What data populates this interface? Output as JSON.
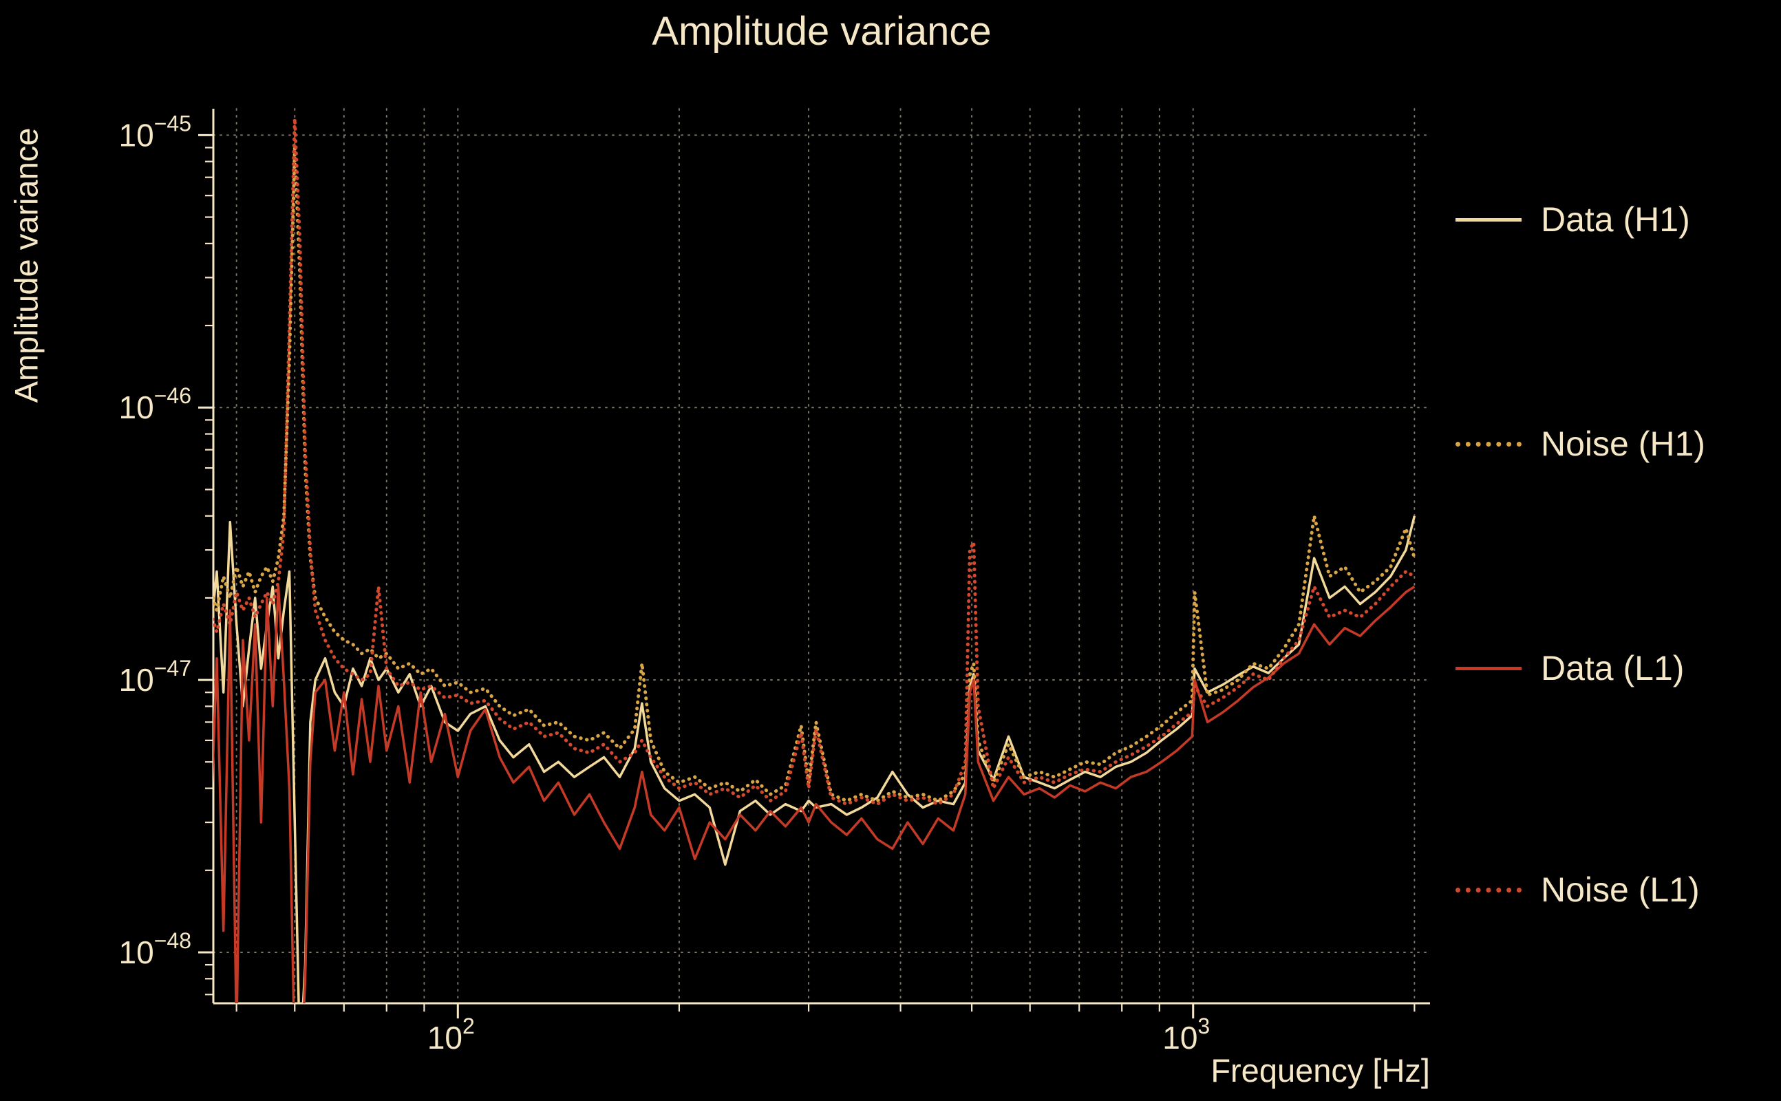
{
  "colors": {
    "background": "#000000",
    "text": "#f6e8c6",
    "grid": "#f6e8c6",
    "h1_data": "#f2d99b",
    "h1_noise": "#d8a546",
    "l1_data": "#c43a26",
    "l1_noise": "#d2492e"
  },
  "chart_data": {
    "type": "line",
    "title": "Amplitude variance",
    "xlabel": "Frequency [Hz]",
    "ylabel": "Amplitude variance",
    "xscale": "log",
    "yscale": "log",
    "xlim": [
      46.5,
      2100
    ],
    "ylim": [
      6.5e-49,
      1.25e-45
    ],
    "grid": "dotted",
    "legend_position": "right-outside",
    "x_tick_exponents": [
      2,
      3
    ],
    "y_tick_exponents": [
      -45,
      -46,
      -47,
      -48
    ],
    "x_gridlines": [
      50,
      60,
      70,
      80,
      90,
      100,
      200,
      300,
      400,
      500,
      600,
      700,
      800,
      900,
      1000,
      2000
    ],
    "values_scale": 1e-48,
    "x": [
      45,
      46,
      47,
      48,
      49,
      50,
      51,
      52,
      53,
      54,
      55,
      56,
      57,
      58,
      59,
      60,
      61,
      62,
      63,
      64,
      66,
      68,
      70,
      72,
      74,
      76,
      78,
      80,
      83,
      86,
      89,
      92,
      96,
      100,
      104,
      109,
      114,
      119,
      125,
      131,
      137,
      144,
      151,
      158,
      166,
      174,
      178,
      183,
      191,
      200,
      210,
      220,
      231,
      242,
      254,
      266,
      279,
      293,
      300,
      307,
      322,
      338,
      354,
      372,
      390,
      409,
      429,
      450,
      472,
      490,
      497,
      503,
      510,
      535,
      561,
      589,
      618,
      648,
      680,
      713,
      748,
      785,
      823,
      864,
      906,
      950,
      997,
      1005,
      1046,
      1097,
      1151,
      1207,
      1266,
      1328,
      1393,
      1461,
      1533,
      1608,
      1687,
      1769,
      1856,
      1947,
      2000
    ],
    "series": [
      {
        "name": "Data (H1)",
        "style": "solid",
        "color": "#f2d99b",
        "values": [
          22,
          14,
          25,
          9,
          38,
          16,
          8,
          13,
          20,
          11,
          16,
          22,
          12,
          18,
          25,
          3,
          0.4,
          0.9,
          7,
          10,
          12,
          9,
          8,
          11,
          9.5,
          12,
          10,
          11,
          9,
          10.5,
          8,
          9.5,
          7,
          6.5,
          7.5,
          8,
          6,
          5.2,
          5.8,
          4.6,
          5.0,
          4.4,
          4.8,
          5.2,
          4.4,
          5.6,
          8.2,
          5.0,
          4.0,
          3.6,
          3.8,
          3.4,
          2.1,
          3.3,
          3.6,
          3.2,
          3.5,
          3.3,
          3.6,
          3.4,
          3.5,
          3.2,
          3.4,
          3.7,
          4.6,
          3.8,
          3.4,
          3.6,
          3.5,
          4.2,
          9.5,
          10.5,
          5.5,
          4.3,
          6.2,
          4.4,
          4.2,
          4.0,
          4.3,
          4.6,
          4.4,
          4.8,
          5.0,
          5.4,
          6.0,
          6.6,
          7.4,
          11.0,
          9.0,
          9.6,
          10.4,
          11.2,
          10.6,
          12.0,
          13.5,
          28,
          20,
          22,
          19,
          21,
          24,
          30,
          40
        ]
      },
      {
        "name": "Noise (H1)",
        "style": "dotted",
        "color": "#d8a546",
        "values": [
          20,
          22,
          18,
          24,
          20,
          26,
          22,
          25,
          21,
          24,
          26,
          23,
          28,
          40,
          150,
          900,
          300,
          60,
          28,
          20,
          17,
          15,
          14,
          13.5,
          12.5,
          13,
          12,
          12.5,
          11,
          11.5,
          10.5,
          11,
          9.5,
          9.8,
          9.0,
          9.3,
          8.0,
          7.4,
          7.8,
          6.8,
          7.0,
          6.2,
          6.0,
          6.4,
          5.6,
          6.6,
          11.5,
          6.0,
          4.6,
          4.2,
          4.4,
          4.0,
          4.2,
          3.9,
          4.3,
          3.8,
          4.1,
          6.8,
          4.2,
          7.0,
          3.8,
          3.6,
          3.8,
          3.6,
          3.9,
          3.7,
          3.8,
          3.6,
          3.9,
          4.5,
          10.5,
          11.5,
          6.0,
          4.2,
          5.8,
          4.4,
          4.6,
          4.4,
          4.7,
          5.0,
          4.9,
          5.4,
          5.7,
          6.2,
          6.8,
          7.6,
          8.4,
          21,
          8.8,
          9.2,
          10.0,
          11.5,
          11.0,
          13.0,
          16,
          40,
          24,
          26,
          21,
          23,
          26,
          36,
          28
        ]
      },
      {
        "name": "Data (L1)",
        "style": "solid",
        "color": "#c43a26",
        "values": [
          15,
          2.5,
          12,
          1.2,
          18,
          0.5,
          14,
          6,
          16,
          3.0,
          20,
          8,
          22,
          10,
          4,
          0.4,
          0.3,
          0.8,
          5,
          9,
          10,
          5.5,
          9,
          4.5,
          8.5,
          5,
          9.5,
          5.5,
          8,
          4.2,
          9,
          5.0,
          7.5,
          4.4,
          6.5,
          7.8,
          5.2,
          4.2,
          4.8,
          3.6,
          4.2,
          3.2,
          3.8,
          3.0,
          2.4,
          3.4,
          4.6,
          3.2,
          2.8,
          3.4,
          2.2,
          3.0,
          2.6,
          3.2,
          2.8,
          3.3,
          2.9,
          3.4,
          3.0,
          3.5,
          3.0,
          2.7,
          3.1,
          2.6,
          2.4,
          3.0,
          2.5,
          3.1,
          2.8,
          3.8,
          9.0,
          10.0,
          5.0,
          3.6,
          4.4,
          3.8,
          4.0,
          3.7,
          4.1,
          3.9,
          4.2,
          4.0,
          4.4,
          4.6,
          5.0,
          5.5,
          6.2,
          10.0,
          7.0,
          7.6,
          8.4,
          9.4,
          10.2,
          11.5,
          12.5,
          16,
          13.5,
          15.5,
          14.5,
          16.5,
          18.5,
          21,
          22
        ]
      },
      {
        "name": "Noise (L1)",
        "style": "dotted",
        "color": "#d2492e",
        "values": [
          16,
          18,
          15,
          19,
          16,
          21,
          18,
          20,
          17,
          19,
          21,
          19,
          23,
          35,
          200,
          1150,
          400,
          70,
          30,
          18,
          14,
          12,
          11,
          10.5,
          10,
          10.5,
          22,
          11,
          9.5,
          9.8,
          9.2,
          9.5,
          8.6,
          8.8,
          8.2,
          8.4,
          7.2,
          6.6,
          7.0,
          6.2,
          6.4,
          5.6,
          5.4,
          5.8,
          5.0,
          5.4,
          6.0,
          5.2,
          4.4,
          4.0,
          4.2,
          3.8,
          4.0,
          3.7,
          4.1,
          3.6,
          3.9,
          6.4,
          4.0,
          6.6,
          3.7,
          3.5,
          3.7,
          3.5,
          3.8,
          3.6,
          3.7,
          3.5,
          3.8,
          5.0,
          30,
          32,
          8.0,
          4.0,
          5.2,
          4.2,
          4.4,
          4.2,
          4.5,
          4.7,
          4.6,
          5.0,
          5.3,
          5.7,
          6.2,
          6.9,
          7.6,
          9.5,
          8.0,
          8.6,
          9.4,
          10.5,
          10.0,
          12.0,
          14,
          22,
          17,
          18,
          17,
          19,
          22,
          25,
          24
        ]
      }
    ]
  }
}
